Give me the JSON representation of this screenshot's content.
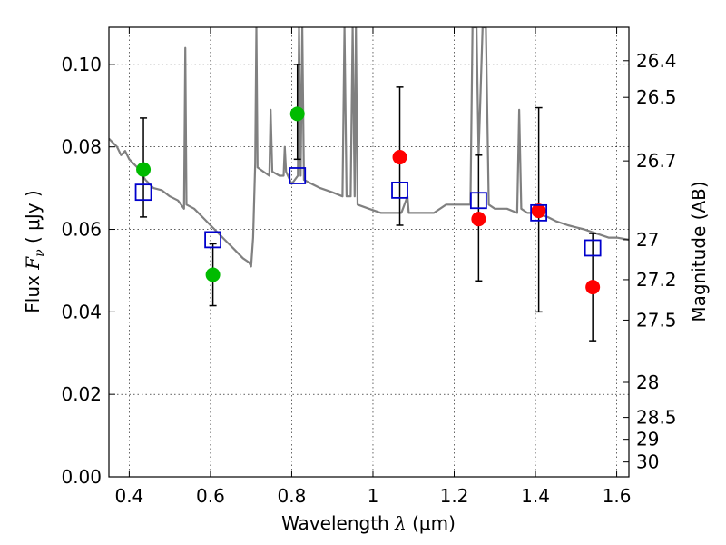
{
  "chart_data": {
    "type": "scatter",
    "xlabel_prefix": "Wavelength",
    "xlabel_symbol": "λ",
    "xlabel_unit": "(μm)",
    "ylabel_prefix": "Flux",
    "ylabel_symbol": "F",
    "ylabel_subscript": "ν",
    "ylabel_unit": "( μJy )",
    "y2label": "Magnitude (AB)",
    "xlim": [
      0.35,
      1.63
    ],
    "ylim": [
      0.0,
      0.109
    ],
    "grid": true,
    "x_ticks": [
      {
        "value": 0.4,
        "label": "0.4"
      },
      {
        "value": 0.6,
        "label": "0.6"
      },
      {
        "value": 0.8,
        "label": "0.8"
      },
      {
        "value": 1.0,
        "label": "1"
      },
      {
        "value": 1.2,
        "label": "1.2"
      },
      {
        "value": 1.4,
        "label": "1.4"
      },
      {
        "value": 1.6,
        "label": "1.6"
      }
    ],
    "y_ticks": [
      {
        "value": 0.0,
        "label": "0.00"
      },
      {
        "value": 0.02,
        "label": "0.02"
      },
      {
        "value": 0.04,
        "label": "0.04"
      },
      {
        "value": 0.06,
        "label": "0.06"
      },
      {
        "value": 0.08,
        "label": "0.08"
      },
      {
        "value": 0.1,
        "label": "0.10"
      }
    ],
    "y2_ticks": [
      {
        "flux": 0.1009,
        "label": "26.4"
      },
      {
        "flux": 0.092,
        "label": "26.5"
      },
      {
        "flux": 0.0766,
        "label": "26.7"
      },
      {
        "flux": 0.0575,
        "label": "27"
      },
      {
        "flux": 0.0478,
        "label": "27.2"
      },
      {
        "flux": 0.038,
        "label": "27.5"
      },
      {
        "flux": 0.0229,
        "label": "28"
      },
      {
        "flux": 0.0144,
        "label": "28.5"
      },
      {
        "flux": 0.0091,
        "label": "29"
      },
      {
        "flux": 0.0036,
        "label": "30"
      }
    ],
    "model_spectrum": {
      "color": "#808080",
      "points": [
        [
          0.35,
          0.082
        ],
        [
          0.36,
          0.081
        ],
        [
          0.37,
          0.08
        ],
        [
          0.38,
          0.078
        ],
        [
          0.39,
          0.079
        ],
        [
          0.4,
          0.077
        ],
        [
          0.42,
          0.075
        ],
        [
          0.44,
          0.072
        ],
        [
          0.46,
          0.07
        ],
        [
          0.48,
          0.0695
        ],
        [
          0.5,
          0.068
        ],
        [
          0.52,
          0.067
        ],
        [
          0.535,
          0.065
        ],
        [
          0.538,
          0.104
        ],
        [
          0.541,
          0.066
        ],
        [
          0.56,
          0.065
        ],
        [
          0.58,
          0.063
        ],
        [
          0.6,
          0.061
        ],
        [
          0.62,
          0.059
        ],
        [
          0.64,
          0.057
        ],
        [
          0.66,
          0.055
        ],
        [
          0.68,
          0.053
        ],
        [
          0.695,
          0.052
        ],
        [
          0.7,
          0.051
        ],
        [
          0.705,
          0.058
        ],
        [
          0.71,
          0.076
        ],
        [
          0.713,
          0.109
        ],
        [
          0.716,
          0.075
        ],
        [
          0.73,
          0.074
        ],
        [
          0.745,
          0.073
        ],
        [
          0.748,
          0.089
        ],
        [
          0.752,
          0.074
        ],
        [
          0.77,
          0.073
        ],
        [
          0.78,
          0.073
        ],
        [
          0.783,
          0.08
        ],
        [
          0.786,
          0.074
        ],
        [
          0.8,
          0.071
        ],
        [
          0.815,
          0.073
        ],
        [
          0.818,
          0.109
        ],
        [
          0.822,
          0.073
        ],
        [
          0.826,
          0.109
        ],
        [
          0.83,
          0.072
        ],
        [
          0.85,
          0.071
        ],
        [
          0.87,
          0.07
        ],
        [
          0.9,
          0.069
        ],
        [
          0.925,
          0.068
        ],
        [
          0.93,
          0.109
        ],
        [
          0.935,
          0.068
        ],
        [
          0.945,
          0.068
        ],
        [
          0.95,
          0.109
        ],
        [
          0.955,
          0.068
        ],
        [
          0.958,
          0.109
        ],
        [
          0.962,
          0.066
        ],
        [
          0.99,
          0.065
        ],
        [
          1.02,
          0.064
        ],
        [
          1.05,
          0.064
        ],
        [
          1.07,
          0.064
        ],
        [
          1.085,
          0.068
        ],
        [
          1.088,
          0.064
        ],
        [
          1.1,
          0.064
        ],
        [
          1.12,
          0.064
        ],
        [
          1.15,
          0.064
        ],
        [
          1.18,
          0.066
        ],
        [
          1.22,
          0.066
        ],
        [
          1.24,
          0.066
        ],
        [
          1.245,
          0.109
        ],
        [
          1.255,
          0.109
        ],
        [
          1.26,
          0.078
        ],
        [
          1.27,
          0.109
        ],
        [
          1.278,
          0.109
        ],
        [
          1.285,
          0.066
        ],
        [
          1.3,
          0.065
        ],
        [
          1.33,
          0.065
        ],
        [
          1.355,
          0.064
        ],
        [
          1.36,
          0.089
        ],
        [
          1.365,
          0.065
        ],
        [
          1.38,
          0.064
        ],
        [
          1.4,
          0.064
        ],
        [
          1.43,
          0.063
        ],
        [
          1.45,
          0.062
        ],
        [
          1.48,
          0.061
        ],
        [
          1.5,
          0.0605
        ],
        [
          1.52,
          0.06
        ],
        [
          1.55,
          0.059
        ],
        [
          1.58,
          0.058
        ],
        [
          1.6,
          0.058
        ],
        [
          1.63,
          0.0575
        ]
      ]
    },
    "model_points": {
      "marker": "open-square",
      "color": "#0000cc",
      "points": [
        {
          "x": 0.435,
          "y": 0.069
        },
        {
          "x": 0.606,
          "y": 0.0575
        },
        {
          "x": 0.814,
          "y": 0.073
        },
        {
          "x": 1.066,
          "y": 0.0695
        },
        {
          "x": 1.26,
          "y": 0.067
        },
        {
          "x": 1.408,
          "y": 0.064
        },
        {
          "x": 1.541,
          "y": 0.0555
        }
      ]
    },
    "observed_points": [
      {
        "x": 0.435,
        "y": 0.0745,
        "err_low": 0.063,
        "err_high": 0.087,
        "color": "#00bb00"
      },
      {
        "x": 0.606,
        "y": 0.049,
        "err_low": 0.0415,
        "err_high": 0.0565,
        "color": "#00bb00"
      },
      {
        "x": 0.814,
        "y": 0.088,
        "err_low": 0.077,
        "err_high": 0.1,
        "color": "#00bb00"
      },
      {
        "x": 1.066,
        "y": 0.0775,
        "err_low": 0.061,
        "err_high": 0.0945,
        "color": "#ff0000"
      },
      {
        "x": 1.26,
        "y": 0.0625,
        "err_low": 0.0475,
        "err_high": 0.078,
        "color": "#ff0000"
      },
      {
        "x": 1.408,
        "y": 0.0645,
        "err_low": 0.04,
        "err_high": 0.0895,
        "color": "#ff0000"
      },
      {
        "x": 1.541,
        "y": 0.046,
        "err_low": 0.033,
        "err_high": 0.059,
        "color": "#ff0000"
      }
    ]
  }
}
